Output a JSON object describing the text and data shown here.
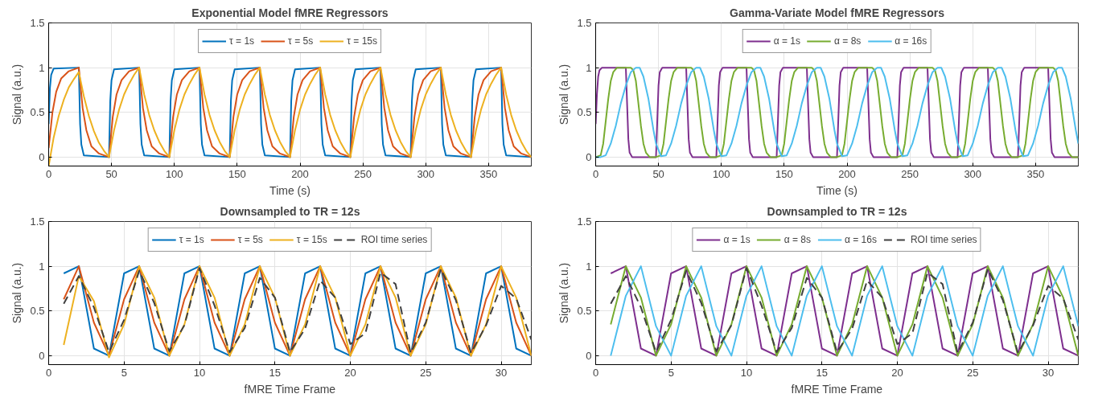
{
  "chart_data": [
    {
      "type": "line",
      "title": "Exponential Model fMRE Regressors",
      "xlabel": "Time (s)",
      "ylabel": "Signal (a.u.)",
      "xlim": [
        0,
        384
      ],
      "ylim": [
        -0.1,
        1.5
      ],
      "xticks": [
        0,
        50,
        100,
        150,
        200,
        250,
        300,
        350
      ],
      "yticks": [
        0,
        0.5,
        1,
        1.5
      ],
      "grid": true,
      "legend": "top",
      "series": [
        {
          "name": "τ = 1s",
          "color": "#0072bd",
          "x": [
            0,
            1,
            2,
            4,
            24,
            25,
            26,
            28,
            48,
            49,
            50,
            52,
            72,
            73,
            74,
            76,
            96,
            97,
            98,
            100,
            120,
            121,
            122,
            124,
            144,
            145,
            146,
            148,
            168,
            169,
            170,
            172,
            192,
            193,
            194,
            196,
            216,
            217,
            218,
            220,
            240,
            241,
            242,
            244,
            264,
            265,
            266,
            268,
            288,
            289,
            290,
            292,
            312,
            313,
            314,
            316,
            336,
            337,
            338,
            340,
            360,
            361,
            362,
            364,
            384
          ],
          "values": [
            0.37,
            0.77,
            0.92,
            0.99,
            1,
            0.37,
            0.14,
            0.02,
            0,
            0.63,
            0.86,
            0.98,
            1,
            0.37,
            0.14,
            0.02,
            0,
            0.63,
            0.86,
            0.98,
            1,
            0.37,
            0.14,
            0.02,
            0,
            0.63,
            0.86,
            0.98,
            1,
            0.37,
            0.14,
            0.02,
            0,
            0.63,
            0.86,
            0.98,
            1,
            0.37,
            0.14,
            0.02,
            0,
            0.63,
            0.86,
            0.98,
            1,
            0.37,
            0.14,
            0.02,
            0,
            0.63,
            0.86,
            0.98,
            1,
            0.37,
            0.14,
            0.02,
            0,
            0.63,
            0.86,
            0.98,
            1,
            0.37,
            0.14,
            0.02,
            0
          ]
        },
        {
          "name": "τ = 5s",
          "color": "#d95319",
          "x": [
            0,
            3,
            6,
            10,
            16,
            24,
            27,
            30,
            34,
            40,
            48,
            51,
            54,
            58,
            64,
            72,
            75,
            78,
            82,
            88,
            96,
            99,
            102,
            106,
            112,
            120,
            123,
            126,
            130,
            136,
            144,
            147,
            150,
            154,
            160,
            168,
            171,
            174,
            178,
            184,
            192,
            195,
            198,
            202,
            208,
            216,
            219,
            222,
            226,
            232,
            240,
            243,
            246,
            250,
            256,
            264,
            267,
            270,
            274,
            280,
            288,
            291,
            294,
            298,
            304,
            312,
            315,
            318,
            322,
            328,
            336,
            339,
            342,
            346,
            352,
            360,
            363,
            366,
            370,
            376,
            384
          ],
          "values": [
            0.1,
            0.5,
            0.73,
            0.88,
            0.96,
            1,
            0.55,
            0.3,
            0.12,
            0.04,
            0,
            0.45,
            0.7,
            0.86,
            0.96,
            1,
            0.55,
            0.3,
            0.12,
            0.04,
            0,
            0.45,
            0.7,
            0.86,
            0.96,
            1,
            0.55,
            0.3,
            0.12,
            0.04,
            0,
            0.45,
            0.7,
            0.86,
            0.96,
            1,
            0.55,
            0.3,
            0.12,
            0.04,
            0,
            0.45,
            0.7,
            0.86,
            0.96,
            1,
            0.55,
            0.3,
            0.12,
            0.04,
            0,
            0.45,
            0.7,
            0.86,
            0.96,
            1,
            0.55,
            0.3,
            0.12,
            0.04,
            0,
            0.45,
            0.7,
            0.86,
            0.96,
            1,
            0.55,
            0.3,
            0.12,
            0.04,
            0,
            0.45,
            0.7,
            0.86,
            0.96,
            1,
            0.55,
            0.3,
            0.12,
            0.04,
            0
          ]
        },
        {
          "name": "τ = 15s",
          "color": "#edb120",
          "x": [
            0,
            4,
            8,
            12,
            16,
            20,
            24,
            28,
            32,
            36,
            40,
            44,
            48,
            52,
            56,
            60,
            64,
            68,
            72,
            76,
            80,
            84,
            88,
            92,
            96,
            100,
            104,
            108,
            112,
            116,
            120,
            124,
            128,
            132,
            136,
            140,
            144,
            148,
            152,
            156,
            160,
            164,
            168,
            172,
            176,
            180,
            184,
            188,
            192,
            196,
            200,
            204,
            208,
            212,
            216,
            220,
            224,
            228,
            232,
            236,
            240,
            244,
            248,
            252,
            256,
            260,
            264,
            268,
            272,
            276,
            280,
            284,
            288,
            292,
            296,
            300,
            304,
            308,
            312,
            316,
            320,
            324,
            328,
            332,
            336,
            340,
            344,
            348,
            352,
            356,
            360,
            364,
            368,
            372,
            376,
            380,
            384
          ],
          "values": [
            -0.1,
            0.22,
            0.46,
            0.64,
            0.78,
            0.87,
            0.95,
            0.68,
            0.46,
            0.29,
            0.16,
            0.07,
            0,
            0.3,
            0.53,
            0.7,
            0.82,
            0.92,
            1,
            0.7,
            0.47,
            0.3,
            0.17,
            0.07,
            0,
            0.3,
            0.53,
            0.7,
            0.82,
            0.92,
            1,
            0.7,
            0.47,
            0.3,
            0.17,
            0.07,
            0,
            0.3,
            0.53,
            0.7,
            0.82,
            0.92,
            1,
            0.7,
            0.47,
            0.3,
            0.17,
            0.07,
            0,
            0.3,
            0.53,
            0.7,
            0.82,
            0.92,
            1,
            0.7,
            0.47,
            0.3,
            0.17,
            0.07,
            0,
            0.3,
            0.53,
            0.7,
            0.82,
            0.92,
            1,
            0.7,
            0.47,
            0.3,
            0.17,
            0.07,
            0,
            0.3,
            0.53,
            0.7,
            0.82,
            0.92,
            1,
            0.7,
            0.47,
            0.3,
            0.17,
            0.07,
            0,
            0.3,
            0.53,
            0.7,
            0.82,
            0.92,
            1,
            0.7,
            0.47,
            0.3,
            0.17,
            0.07,
            0
          ]
        }
      ]
    },
    {
      "type": "line",
      "title": "Gamma-Variate Model fMRE Regressors",
      "xlabel": "Time (s)",
      "ylabel": "Signal (a.u.)",
      "xlim": [
        0,
        384
      ],
      "ylim": [
        -0.1,
        1.5
      ],
      "xticks": [
        0,
        50,
        100,
        150,
        200,
        250,
        300,
        350
      ],
      "yticks": [
        0,
        0.5,
        1,
        1.5
      ],
      "grid": true,
      "legend": "top",
      "series": [
        {
          "name": "α = 1s",
          "color": "#7e2f8e",
          "x": [
            0,
            1,
            2,
            3,
            5,
            24,
            25,
            26,
            27,
            29,
            48,
            49,
            50,
            51,
            53,
            72,
            73,
            74,
            75,
            77,
            96,
            97,
            98,
            99,
            101,
            120,
            121,
            122,
            123,
            125,
            144,
            145,
            146,
            147,
            149,
            168,
            169,
            170,
            171,
            173,
            192,
            193,
            194,
            195,
            197,
            216,
            217,
            218,
            219,
            221,
            240,
            241,
            242,
            243,
            245,
            264,
            265,
            266,
            267,
            269,
            288,
            289,
            290,
            291,
            293,
            312,
            313,
            314,
            315,
            317,
            336,
            337,
            338,
            339,
            341,
            360,
            361,
            362,
            363,
            365,
            384
          ],
          "values": [
            0.37,
            0.7,
            0.9,
            0.97,
            1,
            1,
            0.6,
            0.2,
            0.05,
            0,
            0,
            0.4,
            0.8,
            0.95,
            1,
            1,
            0.6,
            0.2,
            0.05,
            0,
            0,
            0.4,
            0.8,
            0.95,
            1,
            1,
            0.6,
            0.2,
            0.05,
            0,
            0,
            0.4,
            0.8,
            0.95,
            1,
            1,
            0.6,
            0.2,
            0.05,
            0,
            0,
            0.4,
            0.8,
            0.95,
            1,
            1,
            0.6,
            0.2,
            0.05,
            0,
            0,
            0.4,
            0.8,
            0.95,
            1,
            1,
            0.6,
            0.2,
            0.05,
            0,
            0,
            0.4,
            0.8,
            0.95,
            1,
            1,
            0.6,
            0.2,
            0.05,
            0,
            0,
            0.4,
            0.8,
            0.95,
            1,
            1,
            0.6,
            0.2,
            0.05,
            0,
            0
          ]
        },
        {
          "name": "α = 8s",
          "color": "#77ac30",
          "x": [
            0,
            4,
            6,
            8,
            10,
            12,
            14,
            17,
            28,
            30,
            32,
            34,
            36,
            38,
            40,
            43,
            48,
            52,
            54,
            56,
            58,
            60,
            62,
            65,
            76,
            78,
            80,
            82,
            84,
            86,
            88,
            91,
            96,
            100,
            102,
            104,
            106,
            108,
            110,
            113,
            124,
            126,
            128,
            130,
            132,
            134,
            136,
            139,
            144,
            148,
            150,
            152,
            154,
            156,
            158,
            161,
            172,
            174,
            176,
            178,
            180,
            182,
            184,
            187,
            192,
            196,
            198,
            200,
            202,
            204,
            206,
            209,
            220,
            222,
            224,
            226,
            228,
            230,
            232,
            235,
            240,
            244,
            246,
            248,
            250,
            252,
            254,
            257,
            268,
            270,
            272,
            274,
            276,
            278,
            280,
            283,
            288,
            292,
            294,
            296,
            298,
            300,
            302,
            305,
            316,
            318,
            320,
            322,
            324,
            326,
            328,
            331,
            336,
            340,
            342,
            344,
            346,
            348,
            350,
            353,
            364,
            366,
            368,
            370,
            372,
            374,
            376,
            379,
            384
          ],
          "values": [
            0,
            0.02,
            0.15,
            0.4,
            0.65,
            0.85,
            0.95,
            1,
            1,
            0.97,
            0.85,
            0.6,
            0.35,
            0.15,
            0.05,
            0,
            0,
            0.02,
            0.15,
            0.4,
            0.65,
            0.85,
            0.95,
            1,
            1,
            0.97,
            0.85,
            0.6,
            0.35,
            0.15,
            0.05,
            0,
            0,
            0.02,
            0.15,
            0.4,
            0.65,
            0.85,
            0.95,
            1,
            1,
            0.97,
            0.85,
            0.6,
            0.35,
            0.15,
            0.05,
            0,
            0,
            0.02,
            0.15,
            0.4,
            0.65,
            0.85,
            0.95,
            1,
            1,
            0.97,
            0.85,
            0.6,
            0.35,
            0.15,
            0.05,
            0,
            0,
            0.02,
            0.15,
            0.4,
            0.65,
            0.85,
            0.95,
            1,
            1,
            0.97,
            0.85,
            0.6,
            0.35,
            0.15,
            0.05,
            0,
            0,
            0.02,
            0.15,
            0.4,
            0.65,
            0.85,
            0.95,
            1,
            1,
            0.97,
            0.85,
            0.6,
            0.35,
            0.15,
            0.05,
            0,
            0,
            0.02,
            0.15,
            0.4,
            0.65,
            0.85,
            0.95,
            1,
            1,
            0.97,
            0.85,
            0.6,
            0.35,
            0.15,
            0.05,
            0,
            0,
            0.02,
            0.15,
            0.4,
            0.65,
            0.85,
            0.95,
            1,
            1,
            0.97,
            0.85,
            0.6,
            0.35,
            0.15,
            0.05,
            0,
            0
          ]
        },
        {
          "name": "α = 16s",
          "color": "#4dbeee",
          "x": [
            0,
            4,
            8,
            12,
            16,
            20,
            24,
            28,
            32,
            35,
            38,
            42,
            46,
            48,
            52,
            56,
            60,
            64,
            68,
            72,
            76,
            80,
            83,
            86,
            90,
            94,
            96,
            100,
            104,
            108,
            112,
            116,
            120,
            124,
            128,
            131,
            134,
            138,
            142,
            144,
            148,
            152,
            156,
            160,
            164,
            168,
            172,
            176,
            179,
            182,
            186,
            190,
            192,
            196,
            200,
            204,
            208,
            212,
            216,
            220,
            224,
            227,
            230,
            234,
            238,
            240,
            244,
            248,
            252,
            256,
            260,
            264,
            268,
            272,
            275,
            278,
            282,
            286,
            288,
            292,
            296,
            300,
            304,
            308,
            312,
            316,
            320,
            323,
            326,
            330,
            334,
            336,
            340,
            344,
            348,
            352,
            356,
            360,
            364,
            368,
            371,
            374,
            378,
            382,
            384
          ],
          "values": [
            0,
            0,
            0.02,
            0.15,
            0.35,
            0.6,
            0.8,
            0.95,
            1,
            1,
            0.9,
            0.65,
            0.3,
            0.15,
            0.01,
            0.02,
            0.15,
            0.35,
            0.6,
            0.8,
            0.95,
            1,
            1,
            0.9,
            0.65,
            0.3,
            0.15,
            0.01,
            0.02,
            0.15,
            0.35,
            0.6,
            0.8,
            0.95,
            1,
            1,
            0.9,
            0.65,
            0.3,
            0.15,
            0.01,
            0.02,
            0.15,
            0.35,
            0.6,
            0.8,
            0.95,
            1,
            1,
            0.9,
            0.65,
            0.3,
            0.15,
            0.01,
            0.02,
            0.15,
            0.35,
            0.6,
            0.8,
            0.95,
            1,
            1,
            0.9,
            0.65,
            0.3,
            0.15,
            0.01,
            0.02,
            0.15,
            0.35,
            0.6,
            0.8,
            0.95,
            1,
            1,
            0.9,
            0.65,
            0.3,
            0.15,
            0.01,
            0.02,
            0.15,
            0.35,
            0.6,
            0.8,
            0.95,
            1,
            1,
            0.9,
            0.65,
            0.3,
            0.15,
            0.01,
            0.02,
            0.15,
            0.35,
            0.6,
            0.8,
            0.95,
            1,
            1,
            0.9,
            0.65,
            0.3,
            0.15
          ]
        }
      ]
    },
    {
      "type": "line",
      "title": "Downsampled to TR = 12s",
      "xlabel": "fMRE Time Frame",
      "ylabel": "Signal (a.u.)",
      "xlim": [
        0,
        32
      ],
      "ylim": [
        -0.1,
        1.5
      ],
      "xticks": [
        0,
        5,
        10,
        15,
        20,
        25,
        30
      ],
      "yticks": [
        0,
        0.5,
        1,
        1.5
      ],
      "grid": true,
      "legend": "top",
      "x": [
        1,
        2,
        3,
        4,
        5,
        6,
        7,
        8,
        9,
        10,
        11,
        12,
        13,
        14,
        15,
        16,
        17,
        18,
        19,
        20,
        21,
        22,
        23,
        24,
        25,
        26,
        27,
        28,
        29,
        30,
        31,
        32
      ],
      "series": [
        {
          "name": "τ = 1s",
          "color": "#0072bd",
          "values": [
            0.92,
            1,
            0.08,
            0,
            0.92,
            1,
            0.08,
            0,
            0.92,
            1,
            0.08,
            0,
            0.92,
            1,
            0.08,
            0,
            0.92,
            1,
            0.08,
            0,
            0.92,
            1,
            0.08,
            0,
            0.92,
            1,
            0.08,
            0,
            0.92,
            1,
            0.08,
            0
          ]
        },
        {
          "name": "τ = 5s",
          "color": "#d95319",
          "values": [
            0.63,
            1,
            0.37,
            0,
            0.63,
            1,
            0.37,
            0,
            0.63,
            1,
            0.37,
            0,
            0.63,
            1,
            0.37,
            0,
            0.63,
            1,
            0.37,
            0,
            0.63,
            1,
            0.37,
            0,
            0.63,
            1,
            0.37,
            0,
            0.63,
            1,
            0.37,
            0
          ]
        },
        {
          "name": "τ = 15s",
          "color": "#edb120",
          "values": [
            0.12,
            0.89,
            0.61,
            -0.02,
            0.35,
            1,
            0.65,
            0,
            0.35,
            1,
            0.65,
            0,
            0.35,
            1,
            0.65,
            0,
            0.35,
            1,
            0.65,
            0,
            0.35,
            1,
            0.65,
            0,
            0.35,
            1,
            0.65,
            0,
            0.35,
            1,
            0.65,
            0
          ]
        },
        {
          "name": "ROI time series",
          "color": "#404040",
          "line_style": "dashed",
          "values": [
            0.58,
            0.89,
            0.54,
            0.04,
            0.4,
            0.95,
            0.59,
            0.05,
            0.34,
            0.98,
            0.56,
            0.04,
            0.31,
            0.87,
            0.65,
            0.04,
            0.3,
            0.84,
            0.65,
            0.13,
            0.25,
            0.93,
            0.8,
            0.03,
            0.37,
            0.97,
            0.62,
            0.03,
            0.34,
            0.78,
            0.64,
            0.18
          ]
        }
      ]
    },
    {
      "type": "line",
      "title": "Downsampled to TR = 12s",
      "xlabel": "fMRE Time Frame",
      "ylabel": "Signal (a.u.)",
      "xlim": [
        0,
        32
      ],
      "ylim": [
        -0.1,
        1.5
      ],
      "xticks": [
        0,
        5,
        10,
        15,
        20,
        25,
        30
      ],
      "yticks": [
        0,
        0.5,
        1,
        1.5
      ],
      "grid": true,
      "legend": "top",
      "x": [
        1,
        2,
        3,
        4,
        5,
        6,
        7,
        8,
        9,
        10,
        11,
        12,
        13,
        14,
        15,
        16,
        17,
        18,
        19,
        20,
        21,
        22,
        23,
        24,
        25,
        26,
        27,
        28,
        29,
        30,
        31,
        32
      ],
      "series": [
        {
          "name": "α = 1s",
          "color": "#7e2f8e",
          "values": [
            0.92,
            1,
            0.08,
            0,
            0.92,
            1,
            0.08,
            0,
            0.92,
            1,
            0.08,
            0,
            0.92,
            1,
            0.08,
            0,
            0.92,
            1,
            0.08,
            0,
            0.92,
            1,
            0.08,
            0,
            0.92,
            1,
            0.08,
            0,
            0.92,
            1,
            0.08,
            0
          ]
        },
        {
          "name": "α = 8s",
          "color": "#77ac30",
          "values": [
            0.35,
            1,
            0.65,
            0,
            0.35,
            1,
            0.65,
            0,
            0.35,
            1,
            0.65,
            0,
            0.35,
            1,
            0.65,
            0,
            0.35,
            1,
            0.65,
            0,
            0.35,
            1,
            0.65,
            0,
            0.35,
            1,
            0.65,
            0,
            0.35,
            1,
            0.65,
            0
          ]
        },
        {
          "name": "α = 16s",
          "color": "#4dbeee",
          "values": [
            0,
            0.67,
            1,
            0.33,
            0,
            0.67,
            1,
            0.33,
            0,
            0.67,
            1,
            0.33,
            0,
            0.67,
            1,
            0.33,
            0,
            0.67,
            1,
            0.33,
            0,
            0.67,
            1,
            0.33,
            0,
            0.67,
            1,
            0.33,
            0,
            0.67,
            1,
            0.33
          ]
        },
        {
          "name": "ROI time series",
          "color": "#404040",
          "line_style": "dashed",
          "values": [
            0.58,
            0.89,
            0.54,
            0.04,
            0.4,
            0.95,
            0.59,
            0.05,
            0.34,
            0.98,
            0.56,
            0.04,
            0.31,
            0.87,
            0.65,
            0.04,
            0.3,
            0.84,
            0.65,
            0.13,
            0.25,
            0.93,
            0.8,
            0.03,
            0.37,
            0.97,
            0.62,
            0.03,
            0.34,
            0.78,
            0.64,
            0.18
          ]
        }
      ]
    }
  ]
}
